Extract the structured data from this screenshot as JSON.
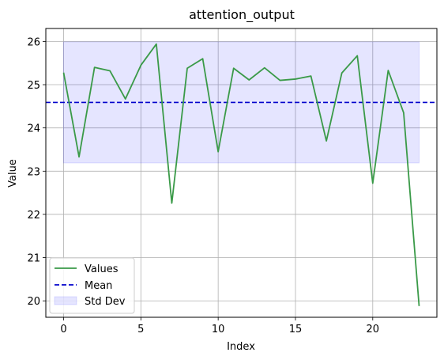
{
  "chart_data": {
    "type": "line",
    "title": "attention_output",
    "xlabel": "Index",
    "ylabel": "Value",
    "xlim": [
      -1.15,
      24.15
    ],
    "ylim": [
      19.62,
      26.3
    ],
    "xticks": [
      0,
      5,
      10,
      15,
      20
    ],
    "yticks": [
      20,
      21,
      22,
      23,
      24,
      25,
      26
    ],
    "grid": true,
    "legend_position": "lower-left",
    "series": [
      {
        "name": "Values",
        "color": "#3a9a48",
        "x": [
          0,
          1,
          2,
          3,
          4,
          5,
          6,
          7,
          8,
          9,
          10,
          11,
          12,
          13,
          14,
          15,
          16,
          17,
          18,
          19,
          20,
          21,
          22,
          23
        ],
        "values": [
          25.28,
          23.33,
          25.4,
          25.32,
          24.67,
          25.45,
          25.94,
          22.26,
          25.38,
          25.6,
          23.45,
          25.38,
          25.11,
          25.39,
          25.1,
          25.13,
          25.2,
          23.7,
          25.27,
          25.67,
          22.72,
          25.33,
          24.35,
          19.88
        ]
      }
    ],
    "mean": {
      "name": "Mean",
      "value": 24.59,
      "color": "#0000cc"
    },
    "std_band": {
      "name": "Std Dev",
      "lower": 23.19,
      "upper": 25.99,
      "x_range": [
        0,
        23
      ],
      "color": "#0000ff"
    }
  }
}
